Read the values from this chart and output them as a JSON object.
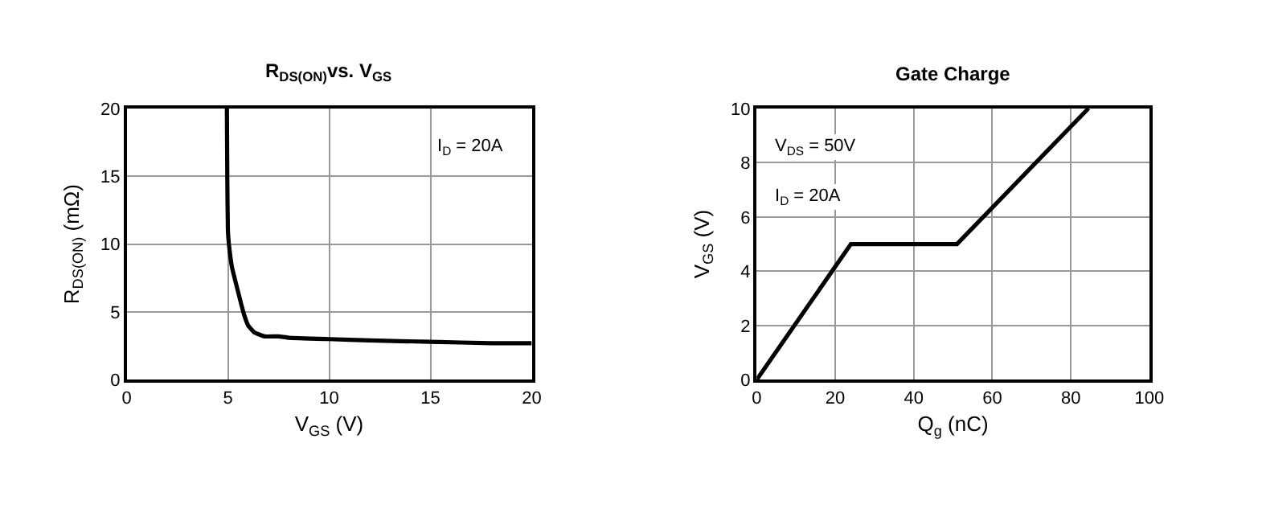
{
  "chart_data": [
    {
      "type": "line",
      "title": "R$_{DS(ON)}$vs. V$_{GS}$",
      "xlabel": "V$_{GS}$ (V)",
      "ylabel": "R$_{DS(ON)}$ (mΩ)",
      "annotations": [
        "I$_{D}$ = 20A"
      ],
      "xlim": [
        0,
        20
      ],
      "xticks": [
        0,
        5,
        10,
        15,
        20
      ],
      "ylim": [
        0,
        20
      ],
      "yticks": [
        0,
        5,
        10,
        15,
        20
      ],
      "grid": true,
      "x": [
        4.95,
        4.97,
        5.0,
        5.05,
        5.2,
        5.5,
        5.8,
        6.0,
        6.3,
        6.8,
        7.5,
        8,
        10,
        12,
        15,
        18,
        20
      ],
      "series": [
        {
          "color": "#000000",
          "values": [
            20,
            15,
            11,
            10,
            8.3,
            6.5,
            4.8,
            4.0,
            3.5,
            3.2,
            3.2,
            3.1,
            3.0,
            2.9,
            2.8,
            2.7,
            2.7
          ]
        }
      ]
    },
    {
      "type": "line",
      "title": "Gate Charge",
      "xlabel": "Q$_{g}$ (nC)",
      "ylabel": "V$_{GS}$ (V)",
      "annotations": [
        "V$_{DS}$ = 50V",
        "I$_{D}$ = 20A"
      ],
      "xlim": [
        0,
        100
      ],
      "xticks": [
        0,
        20,
        40,
        60,
        80,
        100
      ],
      "ylim": [
        0,
        10
      ],
      "yticks": [
        0,
        2,
        4,
        6,
        8,
        10
      ],
      "grid": true,
      "x": [
        0,
        24,
        51,
        84.5
      ],
      "series": [
        {
          "color": "#000000",
          "values": [
            0,
            5,
            5,
            10
          ]
        }
      ]
    }
  ]
}
